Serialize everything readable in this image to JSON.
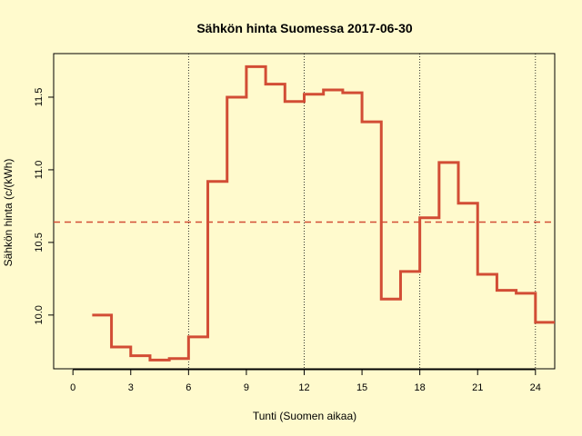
{
  "chart_data": {
    "type": "line",
    "step": true,
    "title": "Sähkön hinta Suomessa 2017-06-30",
    "xlabel": "Tunti (Suomen aikaa)",
    "ylabel": "Sähkön hinta (c/(kWh)",
    "xlim": [
      -1,
      25
    ],
    "ylim": [
      9.63,
      11.8
    ],
    "xticks": [
      "0",
      "3",
      "6",
      "9",
      "12",
      "15",
      "18",
      "21",
      "24"
    ],
    "yticks": [
      "10.0",
      "10.5",
      "11.0",
      "11.5"
    ],
    "vlines": [
      6,
      12,
      18,
      24
    ],
    "mean": 10.64,
    "colors": {
      "line": "#D24D35",
      "mean": "#D24D35",
      "background": "#FFFACD"
    },
    "series": [
      {
        "x": [
          1,
          2,
          3,
          4,
          5,
          6,
          7,
          8,
          9,
          10,
          11,
          12,
          13,
          14,
          15,
          16,
          17,
          18,
          19,
          20,
          21,
          22,
          23,
          24
        ],
        "values": [
          10.0,
          9.78,
          9.72,
          9.69,
          9.7,
          9.85,
          10.92,
          11.5,
          11.71,
          11.59,
          11.47,
          11.52,
          11.55,
          11.53,
          11.33,
          10.11,
          10.3,
          10.67,
          11.05,
          10.77,
          10.28,
          10.17,
          10.15,
          9.95
        ]
      }
    ]
  }
}
